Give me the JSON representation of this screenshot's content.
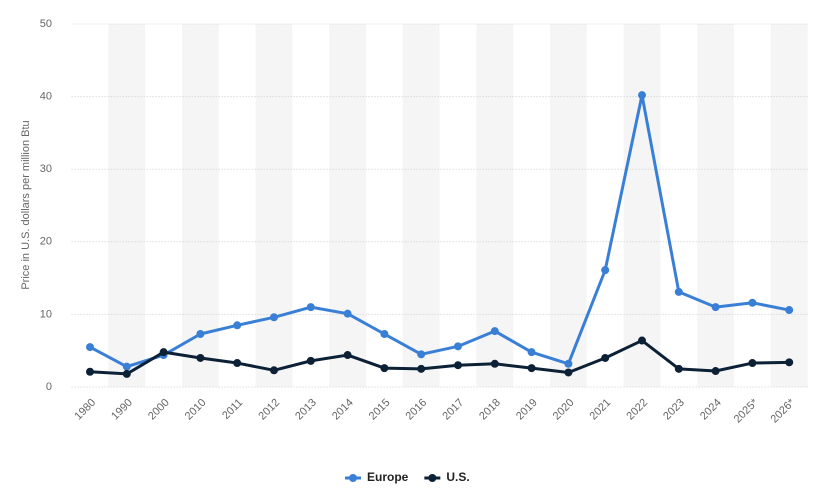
{
  "chart_data": {
    "type": "line",
    "y_label": "Price in U.S. dollars per million Btu",
    "categories": [
      "1980",
      "1990",
      "2000",
      "2010",
      "2011",
      "2012",
      "2013",
      "2014",
      "2015",
      "2016",
      "2017",
      "2018",
      "2019",
      "2020",
      "2021",
      "2022",
      "2023",
      "2024",
      "2025*",
      "2026*"
    ],
    "series": [
      {
        "name": "Europe",
        "color": "#3a7fd6",
        "values": [
          5.5,
          2.8,
          4.4,
          7.3,
          8.5,
          9.6,
          11.0,
          10.1,
          7.3,
          4.5,
          5.6,
          7.7,
          4.8,
          3.2,
          16.1,
          40.2,
          13.1,
          11.0,
          11.6,
          10.6
        ]
      },
      {
        "name": "U.S.",
        "color": "#0d2136",
        "values": [
          2.1,
          1.8,
          4.8,
          4.0,
          3.3,
          2.3,
          3.6,
          4.4,
          2.6,
          2.5,
          3.0,
          3.2,
          2.6,
          2.0,
          4.0,
          6.4,
          2.5,
          2.2,
          3.3,
          3.4
        ]
      }
    ],
    "ylim": [
      0,
      50
    ],
    "yticks": [
      0,
      10,
      20,
      30,
      40,
      50
    ],
    "grid": true,
    "legend": "bottom"
  }
}
